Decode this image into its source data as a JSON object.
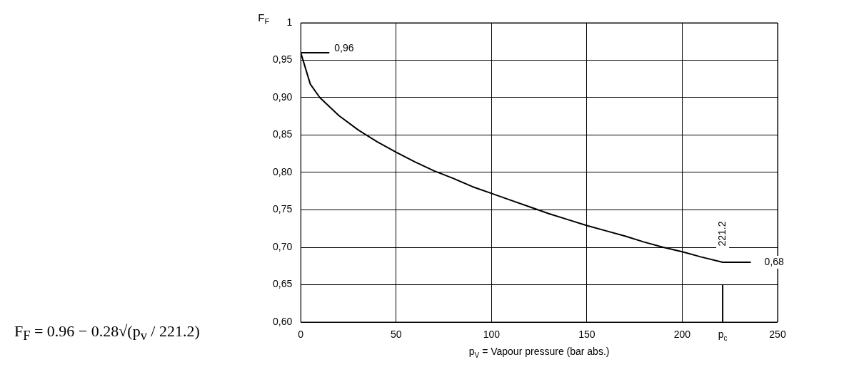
{
  "chart_data": {
    "type": "line",
    "ylabel": "F$_{F}$",
    "xlabel": "p$_{V}$ = Vapour pressure (bar abs.)",
    "x": [
      0,
      5,
      10,
      20,
      30,
      40,
      50,
      60,
      70,
      80,
      90,
      100,
      110,
      120,
      130,
      140,
      150,
      160,
      170,
      180,
      190,
      200,
      210,
      221.2,
      236
    ],
    "series": [
      {
        "color": "#000000",
        "values": [
          0.96,
          0.918,
          0.9,
          0.876,
          0.857,
          0.841,
          0.827,
          0.814,
          0.802,
          0.792,
          0.781,
          0.772,
          0.763,
          0.754,
          0.745,
          0.737,
          0.729,
          0.722,
          0.715,
          0.707,
          0.7,
          0.694,
          0.687,
          0.68,
          0.68
        ]
      }
    ],
    "xlim": [
      0,
      250
    ],
    "xticks": [
      0,
      50,
      100,
      150,
      200,
      {
        "value": 221.2,
        "label": "p$_{c}$"
      },
      250
    ],
    "ylim": [
      0.6,
      1
    ],
    "yticks": [
      {
        "value": 0.6,
        "label": "0,60"
      },
      {
        "value": 0.65,
        "label": "0,65"
      },
      {
        "value": 0.7,
        "label": "0,70"
      },
      {
        "value": 0.75,
        "label": "0,75"
      },
      {
        "value": 0.8,
        "label": "0,80"
      },
      {
        "value": 0.85,
        "label": "0,85"
      },
      {
        "value": 0.9,
        "label": "0,90"
      },
      {
        "value": 0.95,
        "label": "0,95"
      },
      1
    ],
    "ref_lines": [
      {
        "axis": "x",
        "value": 221.2,
        "label": "221.2"
      }
    ],
    "annotations": [
      "0,96",
      "0,68",
      "F$_{F}$ = 0.96 − 0.28√(p$_{v}$ / 221.2)"
    ],
    "grid": true,
    "legend": false,
    "marker": "none",
    "line_style": "solid"
  }
}
